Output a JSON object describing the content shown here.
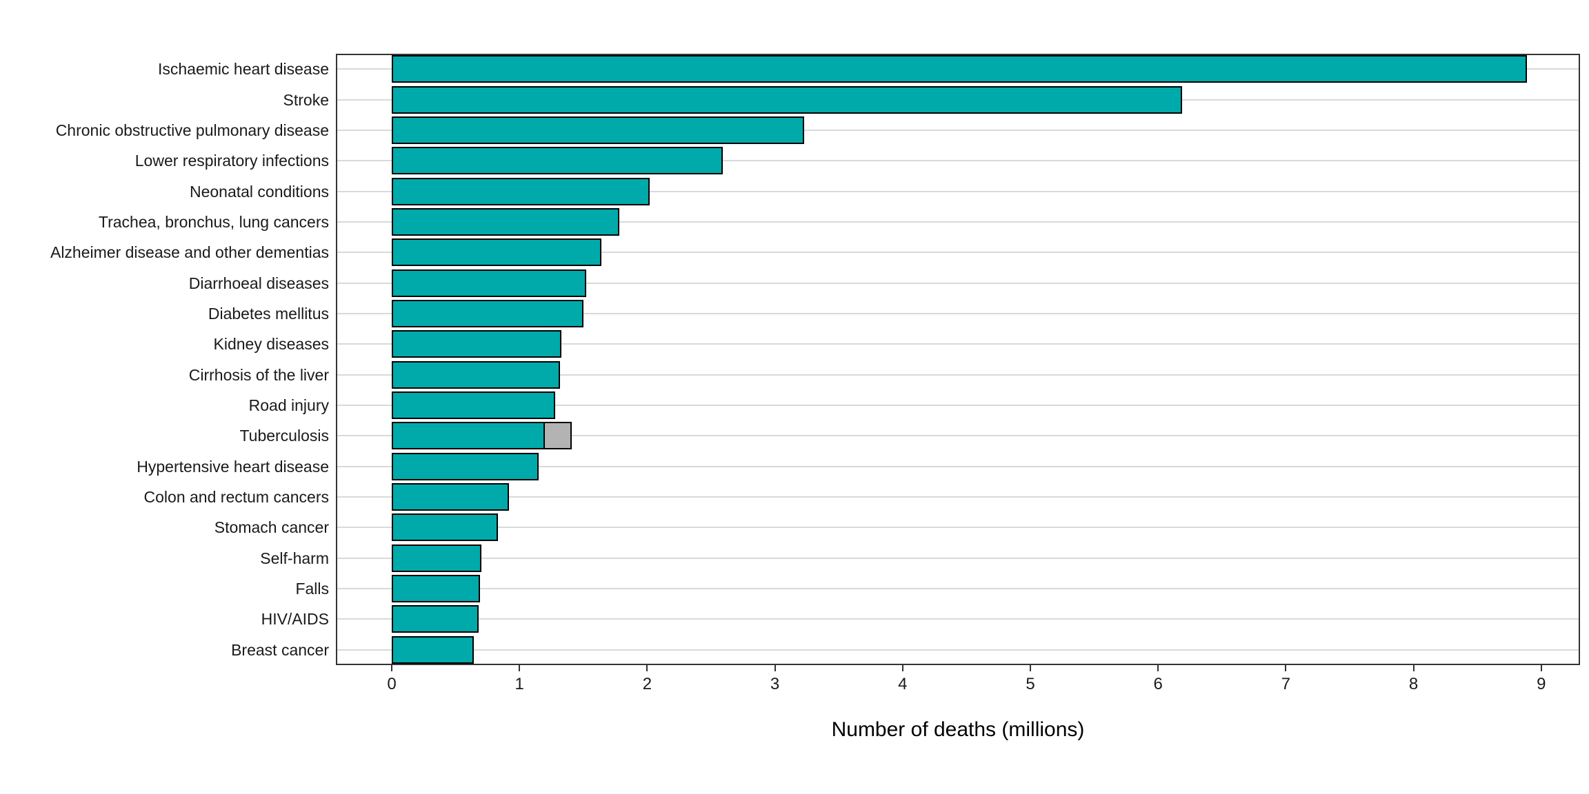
{
  "chart_data": {
    "type": "bar",
    "orientation": "horizontal",
    "title": "",
    "xlabel": "Number of deaths (millions)",
    "ylabel": "",
    "xlim": [
      0,
      9.3
    ],
    "x_ticks": [
      0,
      1,
      2,
      3,
      4,
      5,
      6,
      7,
      8,
      9
    ],
    "grid": "light horizontal line per category, behind bars",
    "legend": "none",
    "categories": [
      "Ischaemic heart disease",
      "Stroke",
      "Chronic obstructive pulmonary disease",
      "Lower respiratory infections",
      "Neonatal conditions",
      "Trachea, bronchus, lung cancers",
      "Alzheimer disease and other dementias",
      "Diarrhoeal diseases",
      "Diabetes mellitus",
      "Kidney diseases",
      "Cirrhosis of the liver",
      "Road injury",
      "Tuberculosis",
      "Hypertensive heart disease",
      "Colon and rectum cancers",
      "Stomach cancer",
      "Self-harm",
      "Falls",
      "HIV/AIDS",
      "Breast cancer"
    ],
    "values": [
      8.89,
      6.19,
      3.23,
      2.59,
      2.02,
      1.78,
      1.64,
      1.52,
      1.5,
      1.33,
      1.32,
      1.28,
      1.2,
      1.15,
      0.92,
      0.83,
      0.7,
      0.69,
      0.68,
      0.64
    ],
    "extra_segments": [
      {
        "category": "Tuberculosis",
        "category_index": 12,
        "start_value": 1.2,
        "end_value": 1.41,
        "color": "#b3b3b3"
      }
    ],
    "colors": {
      "bar_fill": "#00aaab",
      "bar_stroke": "#000000",
      "extra_segment_fill": "#b3b3b3",
      "gridline": "#d9d9d9",
      "panel_border": "#333333",
      "axis_text": "#1a1a1a",
      "background": "#ffffff"
    }
  }
}
